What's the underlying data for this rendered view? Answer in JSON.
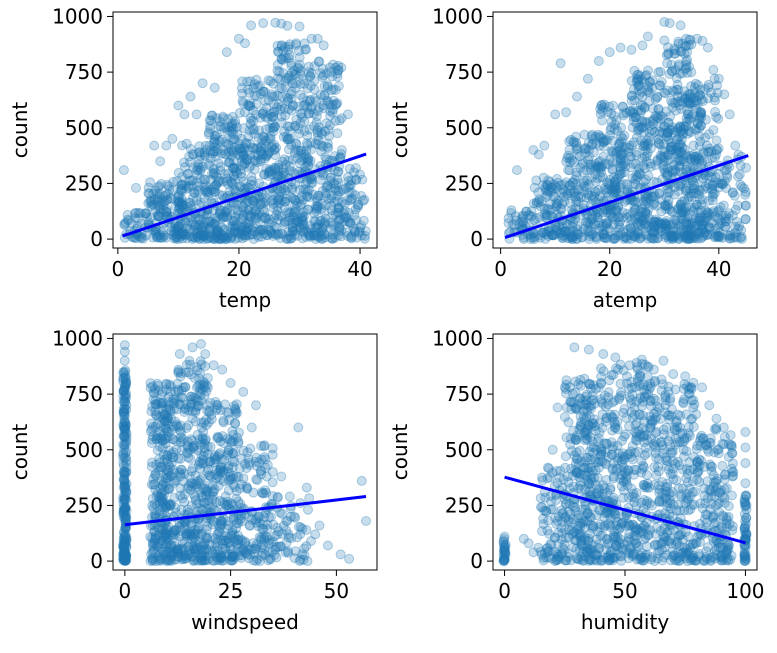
{
  "chart_data": [
    {
      "type": "scatter",
      "xlabel": "temp",
      "ylabel": "count",
      "xlim": [
        -0.8,
        42.8
      ],
      "ylim": [
        -40,
        1020
      ],
      "xticks": [
        0,
        20,
        40
      ],
      "yticks": [
        0,
        250,
        500,
        750,
        1000
      ],
      "point_color": "#1f77b4",
      "line_color": "#0000ff",
      "point_alpha": 0.25,
      "regression": {
        "x": [
          0.8,
          41.0
        ],
        "y": [
          14,
          382
        ]
      },
      "clusters": [
        {
          "x": [
            1,
            5
          ],
          "y": [
            0,
            120
          ],
          "n": 40
        },
        {
          "x": [
            5,
            10
          ],
          "y": [
            0,
            260
          ],
          "n": 110
        },
        {
          "x": [
            10,
            15
          ],
          "y": [
            0,
            430
          ],
          "n": 170
        },
        {
          "x": [
            15,
            20
          ],
          "y": [
            0,
            560
          ],
          "n": 220
        },
        {
          "x": [
            20,
            26
          ],
          "y": [
            0,
            720
          ],
          "n": 280
        },
        {
          "x": [
            26,
            32
          ],
          "y": [
            0,
            880
          ],
          "n": 300
        },
        {
          "x": [
            32,
            37
          ],
          "y": [
            0,
            800
          ],
          "n": 200
        },
        {
          "x": [
            37,
            41
          ],
          "y": [
            0,
            360
          ],
          "n": 60
        }
      ],
      "points": [
        [
          24,
          970
        ],
        [
          26,
          972
        ],
        [
          27,
          968
        ],
        [
          28,
          958
        ],
        [
          22,
          960
        ],
        [
          30,
          955
        ],
        [
          32,
          900
        ],
        [
          34,
          870
        ],
        [
          33,
          900
        ],
        [
          35,
          770
        ],
        [
          36,
          770
        ],
        [
          38,
          560
        ],
        [
          40,
          290
        ],
        [
          1,
          310
        ],
        [
          3,
          230
        ],
        [
          6,
          420
        ],
        [
          8,
          420
        ],
        [
          9,
          450
        ],
        [
          12,
          640
        ],
        [
          14,
          700
        ],
        [
          16,
          680
        ],
        [
          18,
          840
        ],
        [
          20,
          900
        ],
        [
          21,
          880
        ],
        [
          13,
          560
        ],
        [
          11,
          560
        ],
        [
          10,
          600
        ],
        [
          7,
          350
        ],
        [
          39,
          300
        ],
        [
          37,
          400
        ]
      ]
    },
    {
      "type": "scatter",
      "xlabel": "atemp",
      "ylabel": "count",
      "xlim": [
        -1.4,
        47.0
      ],
      "ylim": [
        -40,
        1020
      ],
      "xticks": [
        0,
        20,
        40
      ],
      "yticks": [
        0,
        250,
        500,
        750,
        1000
      ],
      "point_color": "#1f77b4",
      "line_color": "#0000ff",
      "point_alpha": 0.25,
      "regression": {
        "x": [
          0.8,
          45.4
        ],
        "y": [
          7,
          375
        ]
      },
      "clusters": [
        {
          "x": [
            1,
            6
          ],
          "y": [
            0,
            130
          ],
          "n": 40
        },
        {
          "x": [
            6,
            12
          ],
          "y": [
            0,
            280
          ],
          "n": 110
        },
        {
          "x": [
            12,
            18
          ],
          "y": [
            0,
            470
          ],
          "n": 170
        },
        {
          "x": [
            18,
            24
          ],
          "y": [
            0,
            620
          ],
          "n": 220
        },
        {
          "x": [
            24,
            30
          ],
          "y": [
            0,
            760
          ],
          "n": 260
        },
        {
          "x": [
            30,
            35
          ],
          "y": [
            0,
            900
          ],
          "n": 300
        },
        {
          "x": [
            35,
            40
          ],
          "y": [
            0,
            720
          ],
          "n": 200
        },
        {
          "x": [
            40,
            45
          ],
          "y": [
            0,
            380
          ],
          "n": 70
        }
      ],
      "points": [
        [
          30,
          975
        ],
        [
          31,
          970
        ],
        [
          33,
          960
        ],
        [
          34,
          900
        ],
        [
          36,
          900
        ],
        [
          37,
          890
        ],
        [
          38,
          860
        ],
        [
          39,
          760
        ],
        [
          40,
          720
        ],
        [
          42,
          560
        ],
        [
          44,
          330
        ],
        [
          3,
          310
        ],
        [
          6,
          400
        ],
        [
          8,
          420
        ],
        [
          12,
          570
        ],
        [
          14,
          640
        ],
        [
          16,
          720
        ],
        [
          18,
          800
        ],
        [
          20,
          840
        ],
        [
          22,
          860
        ],
        [
          24,
          850
        ],
        [
          26,
          870
        ],
        [
          11,
          790
        ],
        [
          27,
          910
        ],
        [
          10,
          560
        ],
        [
          7,
          380
        ],
        [
          41,
          650
        ],
        [
          43,
          420
        ],
        [
          45,
          320
        ],
        [
          2,
          130
        ]
      ]
    },
    {
      "type": "scatter",
      "xlabel": "windspeed",
      "ylabel": "count",
      "xlim": [
        -2.8,
        59.6
      ],
      "ylim": [
        -40,
        1020
      ],
      "xticks": [
        0,
        25,
        50
      ],
      "yticks": [
        0,
        250,
        500,
        750,
        1000
      ],
      "point_color": "#1f77b4",
      "line_color": "#0000ff",
      "point_alpha": 0.25,
      "regression": {
        "x": [
          0,
          57
        ],
        "y": [
          163,
          290
        ]
      },
      "clusters": [
        {
          "x": [
            -0.4,
            0.4
          ],
          "y": [
            0,
            860
          ],
          "n": 220
        },
        {
          "x": [
            6,
            11
          ],
          "y": [
            0,
            800
          ],
          "n": 260
        },
        {
          "x": [
            11,
            20
          ],
          "y": [
            0,
            900
          ],
          "n": 360
        },
        {
          "x": [
            20,
            27
          ],
          "y": [
            0,
            720
          ],
          "n": 220
        },
        {
          "x": [
            27,
            35
          ],
          "y": [
            0,
            520
          ],
          "n": 130
        },
        {
          "x": [
            35,
            44
          ],
          "y": [
            0,
            300
          ],
          "n": 50
        }
      ],
      "points": [
        [
          0,
          970
        ],
        [
          0,
          940
        ],
        [
          0,
          900
        ],
        [
          13,
          930
        ],
        [
          16,
          960
        ],
        [
          18,
          975
        ],
        [
          19,
          930
        ],
        [
          21,
          880
        ],
        [
          23,
          860
        ],
        [
          25,
          800
        ],
        [
          28,
          760
        ],
        [
          30,
          600
        ],
        [
          31,
          700
        ],
        [
          33,
          520
        ],
        [
          35,
          400
        ],
        [
          37,
          380
        ],
        [
          39,
          290
        ],
        [
          40,
          200
        ],
        [
          43,
          330
        ],
        [
          45,
          120
        ],
        [
          46,
          160
        ],
        [
          48,
          70
        ],
        [
          51,
          30
        ],
        [
          53,
          10
        ],
        [
          56,
          360
        ],
        [
          57,
          180
        ],
        [
          41,
          600
        ],
        [
          44,
          90
        ],
        [
          36,
          240
        ],
        [
          38,
          40
        ]
      ]
    },
    {
      "type": "scatter",
      "xlabel": "humidity",
      "ylabel": "count",
      "xlim": [
        -4.8,
        104.8
      ],
      "ylim": [
        -40,
        1020
      ],
      "xticks": [
        0,
        50,
        100
      ],
      "yticks": [
        0,
        250,
        500,
        750,
        1000
      ],
      "point_color": "#1f77b4",
      "line_color": "#0000ff",
      "point_alpha": 0.25,
      "regression": {
        "x": [
          0,
          100
        ],
        "y": [
          377,
          82
        ]
      },
      "clusters": [
        {
          "x": [
            -0.5,
            0.5
          ],
          "y": [
            0,
            110
          ],
          "n": 25
        },
        {
          "x": [
            15,
            25
          ],
          "y": [
            0,
            420
          ],
          "n": 80
        },
        {
          "x": [
            25,
            40
          ],
          "y": [
            0,
            820
          ],
          "n": 300
        },
        {
          "x": [
            40,
            60
          ],
          "y": [
            0,
            900
          ],
          "n": 360
        },
        {
          "x": [
            60,
            80
          ],
          "y": [
            0,
            820
          ],
          "n": 300
        },
        {
          "x": [
            80,
            95
          ],
          "y": [
            0,
            600
          ],
          "n": 180
        },
        {
          "x": [
            99.5,
            100.5
          ],
          "y": [
            0,
            300
          ],
          "n": 50
        }
      ],
      "points": [
        [
          29,
          960
        ],
        [
          35,
          950
        ],
        [
          41,
          930
        ],
        [
          46,
          915
        ],
        [
          52,
          880
        ],
        [
          57,
          905
        ],
        [
          62,
          860
        ],
        [
          66,
          900
        ],
        [
          70,
          840
        ],
        [
          75,
          830
        ],
        [
          82,
          780
        ],
        [
          85,
          700
        ],
        [
          88,
          640
        ],
        [
          91,
          600
        ],
        [
          95,
          400
        ],
        [
          100,
          580
        ],
        [
          100,
          510
        ],
        [
          100,
          440
        ],
        [
          100,
          350
        ],
        [
          22,
          690
        ],
        [
          20,
          500
        ],
        [
          18,
          420
        ],
        [
          16,
          190
        ],
        [
          14,
          60
        ],
        [
          10,
          80
        ],
        [
          8,
          100
        ],
        [
          0,
          110
        ],
        [
          0,
          60
        ],
        [
          12,
          40
        ],
        [
          25,
          780
        ]
      ]
    }
  ]
}
